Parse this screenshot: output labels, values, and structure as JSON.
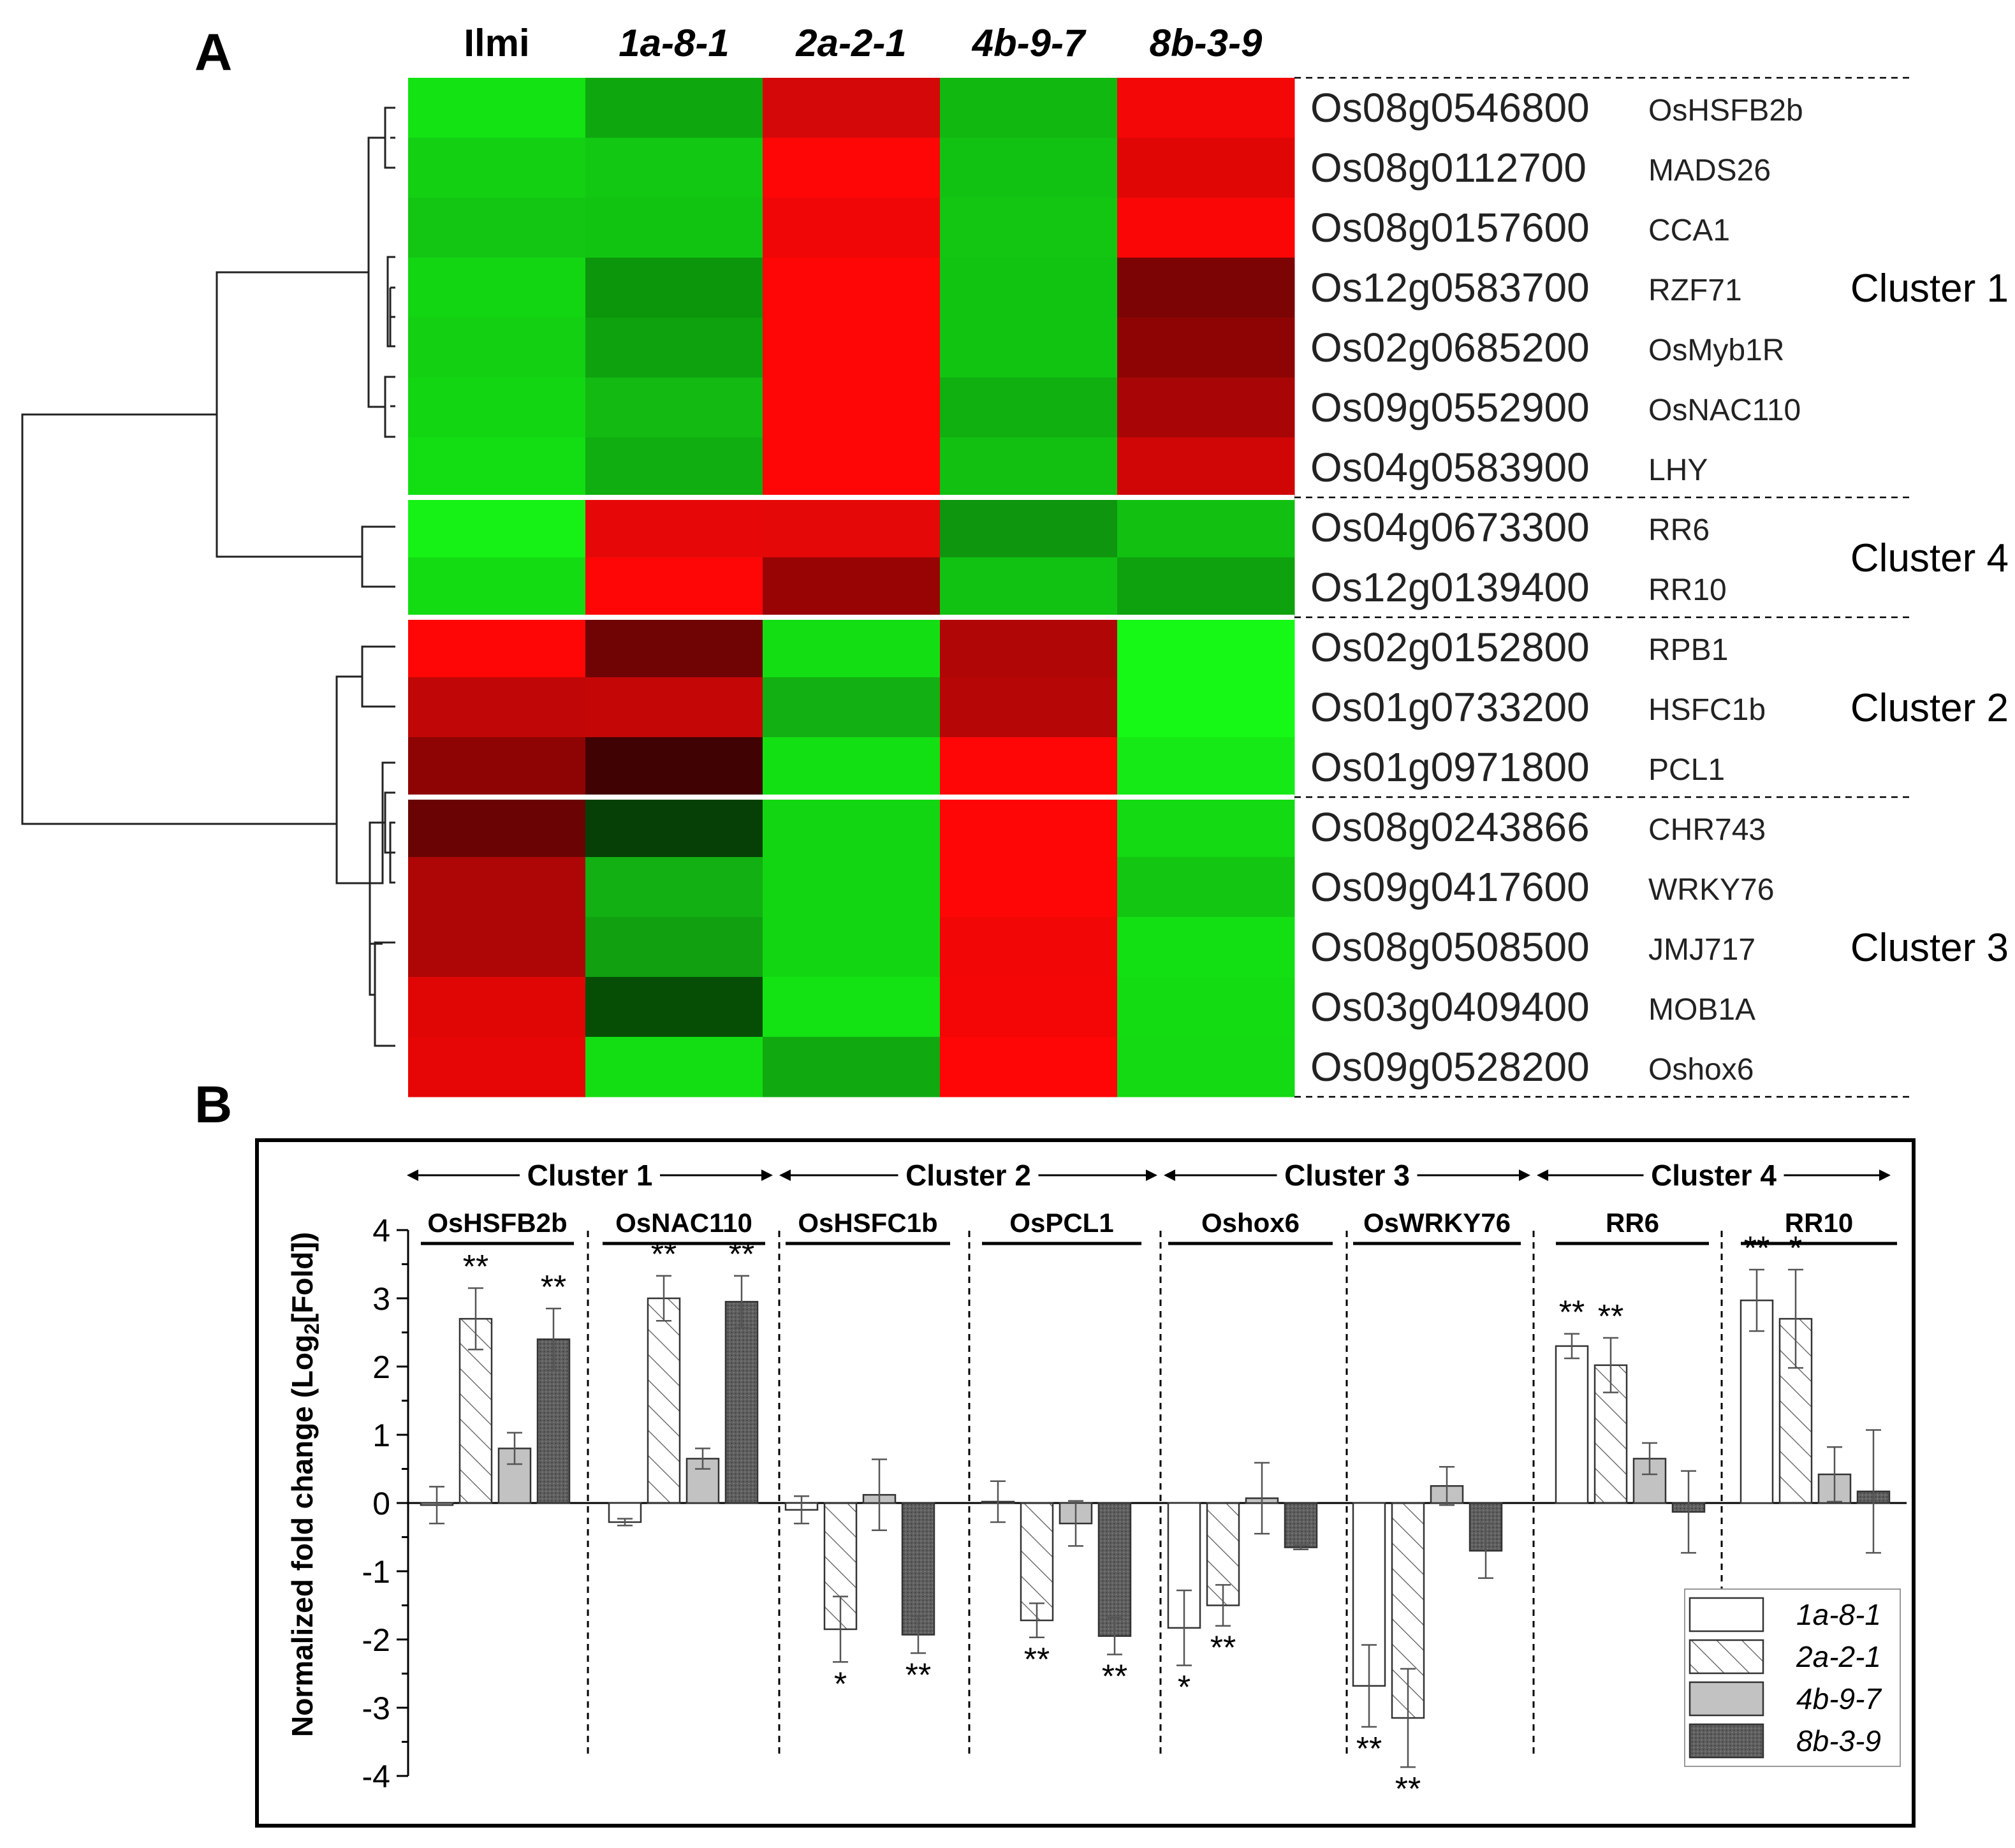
{
  "panel_labels": {
    "a": "A",
    "b": "B"
  },
  "heatmap": {
    "samples": [
      {
        "label": "Ilmi",
        "italic": false
      },
      {
        "label": "1a-8-1",
        "italic": true
      },
      {
        "label": "2a-2-1",
        "italic": true
      },
      {
        "label": "4b-9-7",
        "italic": true
      },
      {
        "label": "8b-3-9",
        "italic": true
      }
    ],
    "genes": [
      {
        "id": "Os08g0546800",
        "name": "OsHSFB2b"
      },
      {
        "id": "Os08g0112700",
        "name": "MADS26"
      },
      {
        "id": "Os08g0157600",
        "name": "CCA1"
      },
      {
        "id": "Os12g0583700",
        "name": "RZF71"
      },
      {
        "id": "Os02g0685200",
        "name": "OsMyb1R"
      },
      {
        "id": "Os09g0552900",
        "name": "OsNAC110"
      },
      {
        "id": "Os04g0583900",
        "name": "LHY"
      },
      {
        "id": "Os04g0673300",
        "name": "RR6"
      },
      {
        "id": "Os12g0139400",
        "name": "RR10"
      },
      {
        "id": "Os02g0152800",
        "name": "RPB1"
      },
      {
        "id": "Os01g0733200",
        "name": "HSFC1b"
      },
      {
        "id": "Os01g0971800",
        "name": "PCL1"
      },
      {
        "id": "Os08g0243866",
        "name": "CHR743"
      },
      {
        "id": "Os09g0417600",
        "name": "WRKY76"
      },
      {
        "id": "Os08g0508500",
        "name": "JMJ717"
      },
      {
        "id": "Os03g0409400",
        "name": "MOB1A"
      },
      {
        "id": "Os09g0528200",
        "name": "Oshox6"
      }
    ],
    "colors": [
      [
        "#13e213",
        "#0ea80e",
        "#d40808",
        "#10b810",
        "#f40707"
      ],
      [
        "#13d013",
        "#12c812",
        "#fe0606",
        "#12c212",
        "#e00606"
      ],
      [
        "#13c613",
        "#12c412",
        "#f00606",
        "#12c612",
        "#fa0606"
      ],
      [
        "#13d613",
        "#0c960c",
        "#fe0606",
        "#12c412",
        "#7c0404"
      ],
      [
        "#13d013",
        "#0ea20e",
        "#fe0606",
        "#12c412",
        "#8e0404"
      ],
      [
        "#13d613",
        "#12ba12",
        "#fe0606",
        "#10b010",
        "#a80606"
      ],
      [
        "#13de13",
        "#10ae10",
        "#fe0606",
        "#12c012",
        "#d00606"
      ],
      [
        "#16f216",
        "#e60808",
        "#e40808",
        "#0e960e",
        "#12c012"
      ],
      [
        "#13dc13",
        "#fe0606",
        "#980404",
        "#12c212",
        "#0ea20e"
      ],
      [
        "#fe0606",
        "#700404",
        "#13de13",
        "#b00606",
        "#16f816"
      ],
      [
        "#c00606",
        "#c40606",
        "#12b012",
        "#b60606",
        "#16f816"
      ],
      [
        "#8e0404",
        "#400202",
        "#13e013",
        "#fe0606",
        "#16ea16"
      ],
      [
        "#6a0404",
        "#064006",
        "#13d613",
        "#fe0606",
        "#13da13"
      ],
      [
        "#ae0606",
        "#12b012",
        "#13d613",
        "#fe0606",
        "#12c612"
      ],
      [
        "#ae0606",
        "#10a010",
        "#13d613",
        "#f20606",
        "#13e013"
      ],
      [
        "#e00606",
        "#064e06",
        "#13e213",
        "#f40606",
        "#13dc13"
      ],
      [
        "#e60606",
        "#13de13",
        "#10aa10",
        "#fe0606",
        "#13da13"
      ]
    ],
    "clusters": [
      {
        "label": "Cluster 1",
        "first_row": 0,
        "last_row": 6
      },
      {
        "label": "Cluster 4",
        "first_row": 7,
        "last_row": 8
      },
      {
        "label": "Cluster 2",
        "first_row": 9,
        "last_row": 11
      },
      {
        "label": "Cluster 3",
        "first_row": 12,
        "last_row": 16
      }
    ]
  },
  "chart_data": {
    "type": "bar",
    "ylabel": "Normalized fold change (Log2[Fold])",
    "ylim": [
      -4,
      4
    ],
    "yticks": [
      4,
      3,
      2,
      1,
      0,
      -1,
      -2,
      -3,
      -4
    ],
    "cluster_headers": [
      "Cluster 1",
      "Cluster 2",
      "Cluster 3",
      "Cluster 4"
    ],
    "series": [
      {
        "name": "1a-8-1",
        "fill": "open"
      },
      {
        "name": "2a-2-1",
        "fill": "hatched"
      },
      {
        "name": "4b-9-7",
        "fill": "#c2c2c2"
      },
      {
        "name": "8b-3-9",
        "fill": "#5f5f5f"
      }
    ],
    "categories": [
      "OsHSFB2b",
      "OsNAC110",
      "OsHSFC1b",
      "OsPCL1",
      "Oshox6",
      "OsWRKY76",
      "RR6",
      "RR10"
    ],
    "values": [
      [
        -0.03,
        2.7,
        0.8,
        2.4
      ],
      [
        -0.28,
        3.0,
        0.65,
        2.95
      ],
      [
        -0.1,
        -1.85,
        0.12,
        -1.93
      ],
      [
        0.02,
        -1.72,
        -0.3,
        -1.95
      ],
      [
        -1.83,
        -1.5,
        0.07,
        -0.65
      ],
      [
        -2.68,
        -3.15,
        0.25,
        -0.7
      ],
      [
        2.3,
        2.02,
        0.65,
        -0.13
      ],
      [
        2.97,
        2.7,
        0.42,
        0.17
      ]
    ],
    "errors": [
      [
        0.27,
        0.45,
        0.23,
        0.45
      ],
      [
        0.05,
        0.33,
        0.15,
        0.38
      ],
      [
        0.2,
        0.48,
        0.52,
        0.27
      ],
      [
        0.3,
        0.25,
        0.33,
        0.27
      ],
      [
        0.55,
        0.3,
        0.52,
        0.03
      ],
      [
        0.6,
        0.72,
        0.28,
        0.4
      ],
      [
        0.18,
        0.4,
        0.23,
        0.6
      ],
      [
        0.45,
        0.72,
        0.4,
        0.9
      ]
    ],
    "significance": [
      [
        "",
        "**",
        "",
        "**"
      ],
      [
        "",
        "**",
        "",
        "**"
      ],
      [
        "",
        "*",
        "",
        "**"
      ],
      [
        "",
        "**",
        "",
        "**"
      ],
      [
        "*",
        "**",
        "",
        ""
      ],
      [
        "**",
        "**",
        "",
        ""
      ],
      [
        "**",
        "**",
        "",
        ""
      ],
      [
        "**",
        "*",
        "",
        ""
      ]
    ]
  }
}
